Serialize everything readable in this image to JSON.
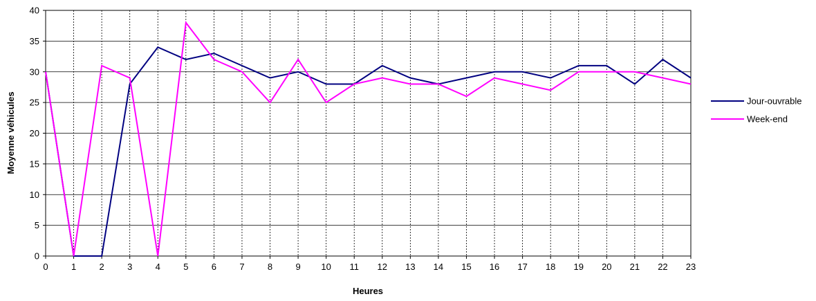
{
  "chart_data": {
    "type": "line",
    "title": "",
    "xlabel": "Heures",
    "ylabel": "Moyenne véhicules",
    "x": [
      0,
      1,
      2,
      3,
      4,
      5,
      6,
      7,
      8,
      9,
      10,
      11,
      12,
      13,
      14,
      15,
      16,
      17,
      18,
      19,
      20,
      21,
      22,
      23
    ],
    "ylim": [
      0,
      40
    ],
    "yticks": [
      0,
      5,
      10,
      15,
      20,
      25,
      30,
      35,
      40
    ],
    "grid": true,
    "legend_position": "right",
    "series": [
      {
        "name": "Jour-ouvrable",
        "color": "#000080",
        "values": [
          30,
          0,
          0,
          28,
          34,
          32,
          33,
          31,
          29,
          30,
          28,
          28,
          31,
          29,
          28,
          29,
          30,
          30,
          29,
          31,
          31,
          28,
          32,
          29
        ]
      },
      {
        "name": "Week-end",
        "color": "#ff00ff",
        "values": [
          30,
          0,
          31,
          29,
          0,
          38,
          32,
          30,
          25,
          32,
          25,
          28,
          29,
          28,
          28,
          26,
          29,
          28,
          27,
          30,
          30,
          30,
          29,
          28
        ]
      }
    ]
  }
}
